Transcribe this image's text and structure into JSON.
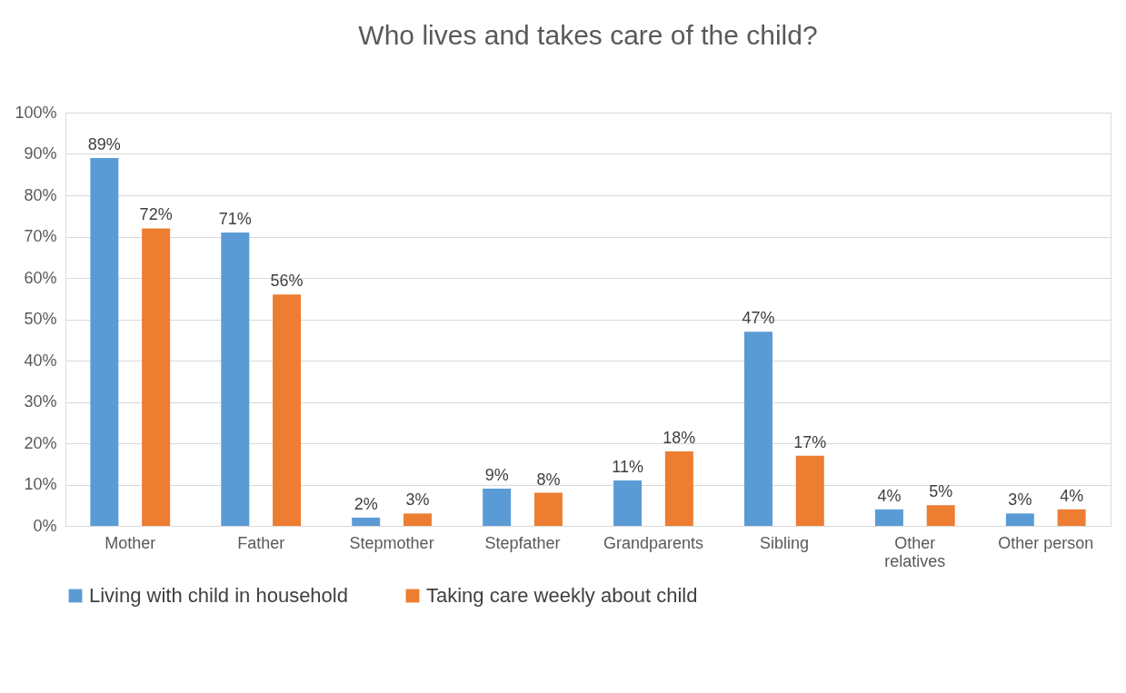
{
  "chart_data": {
    "type": "bar",
    "title": "Who lives and takes care of the child?",
    "categories": [
      "Mother",
      "Father",
      "Stepmother",
      "Stepfather",
      "Grandparents",
      "Sibling",
      "Other relatives",
      "Other person"
    ],
    "series": [
      {
        "name": "Living with child in household",
        "color": "#5b9bd5",
        "values": [
          89,
          71,
          2,
          9,
          11,
          47,
          4,
          3
        ],
        "value_labels": [
          "89%",
          "71%",
          "2%",
          "9%",
          "11%",
          "47%",
          "4%",
          "3%"
        ]
      },
      {
        "name": "Taking care weekly about child",
        "color": "#ed7d31",
        "values": [
          72,
          56,
          3,
          8,
          18,
          17,
          5,
          4
        ],
        "value_labels": [
          "72%",
          "56%",
          "3%",
          "8%",
          "18%",
          "17%",
          "5%",
          "4%"
        ]
      }
    ],
    "ylim": [
      0,
      100
    ],
    "yticks": [
      {
        "value": 0,
        "label": "0%"
      },
      {
        "value": 10,
        "label": "10%"
      },
      {
        "value": 20,
        "label": "20%"
      },
      {
        "value": 30,
        "label": "30%"
      },
      {
        "value": 40,
        "label": "40%"
      },
      {
        "value": 50,
        "label": "50%"
      },
      {
        "value": 60,
        "label": "60%"
      },
      {
        "value": 70,
        "label": "70%"
      },
      {
        "value": 80,
        "label": "80%"
      },
      {
        "value": 90,
        "label": "90%"
      },
      {
        "value": 100,
        "label": "100%"
      }
    ],
    "grid": "y",
    "legend": "bottom"
  }
}
